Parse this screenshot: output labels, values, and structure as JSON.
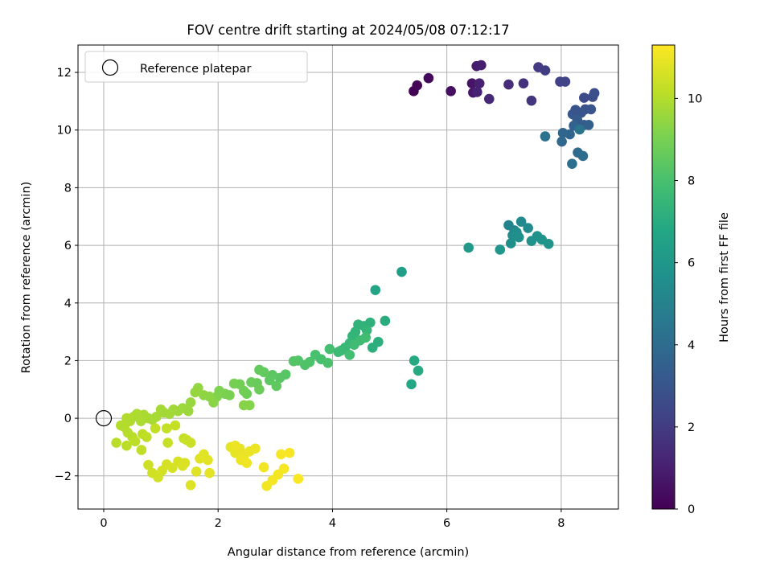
{
  "chart_data": {
    "type": "scatter",
    "title": "FOV centre drift starting at 2024/05/08 07:12:17",
    "xlabel": "Angular distance from reference (arcmin)",
    "ylabel": "Rotation from reference (arcmin)",
    "xlim": [
      -0.45,
      9.0
    ],
    "ylim": [
      -3.15,
      12.95
    ],
    "xticks": [
      0,
      2,
      4,
      6,
      8
    ],
    "yticks": [
      -2,
      0,
      2,
      4,
      6,
      8,
      10,
      12
    ],
    "ytick_labels": [
      "−2",
      "0",
      "2",
      "4",
      "6",
      "8",
      "10",
      "12"
    ],
    "grid": true,
    "legend": {
      "position": "top-left",
      "entries": [
        "Reference platepar"
      ]
    },
    "reference_point": {
      "x": 0,
      "y": 0,
      "label": "Reference platepar"
    },
    "colorbar": {
      "label": "Hours from first FF file",
      "range": [
        0,
        11.3
      ],
      "ticks": [
        0,
        2,
        4,
        6,
        8,
        10
      ],
      "colormap": "viridis"
    },
    "series_note": "points are [angular distance (arcmin), rotation (arcmin), hours from first FF file]",
    "points": [
      [
        5.42,
        11.35,
        0.05
      ],
      [
        5.48,
        11.55,
        0.15
      ],
      [
        5.68,
        11.8,
        0.25
      ],
      [
        6.07,
        11.35,
        0.45
      ],
      [
        6.44,
        11.62,
        0.65
      ],
      [
        6.46,
        11.3,
        0.75
      ],
      [
        6.52,
        12.22,
        0.85
      ],
      [
        6.6,
        12.25,
        0.95
      ],
      [
        6.57,
        11.62,
        1.05
      ],
      [
        6.53,
        11.32,
        1.1
      ],
      [
        6.74,
        11.08,
        1.3
      ],
      [
        7.08,
        11.58,
        1.45
      ],
      [
        7.34,
        11.62,
        1.6
      ],
      [
        7.48,
        11.02,
        1.8
      ],
      [
        7.6,
        12.18,
        1.95
      ],
      [
        7.72,
        12.07,
        2.05
      ],
      [
        7.98,
        11.68,
        2.2
      ],
      [
        8.07,
        11.68,
        2.3
      ],
      [
        8.4,
        11.12,
        2.55
      ],
      [
        8.55,
        11.15,
        2.65
      ],
      [
        8.58,
        11.28,
        2.75
      ],
      [
        8.42,
        10.72,
        2.85
      ],
      [
        8.52,
        10.72,
        2.95
      ],
      [
        8.35,
        10.6,
        3.05
      ],
      [
        8.2,
        10.55,
        3.15
      ],
      [
        8.28,
        10.35,
        3.25
      ],
      [
        8.4,
        10.18,
        3.35
      ],
      [
        8.48,
        10.18,
        3.45
      ],
      [
        8.22,
        10.15,
        3.55
      ],
      [
        8.15,
        9.85,
        3.65
      ],
      [
        8.03,
        9.9,
        3.75
      ],
      [
        8.01,
        9.6,
        3.85
      ],
      [
        8.29,
        9.22,
        3.95
      ],
      [
        8.38,
        9.1,
        4.05
      ],
      [
        8.19,
        8.83,
        4.15
      ],
      [
        7.72,
        9.78,
        4.25
      ],
      [
        8.32,
        10.02,
        4.35
      ],
      [
        8.25,
        10.7,
        3.0
      ],
      [
        7.08,
        6.7,
        5.1
      ],
      [
        7.18,
        6.52,
        5.2
      ],
      [
        7.3,
        6.82,
        5.3
      ],
      [
        7.42,
        6.6,
        5.4
      ],
      [
        7.22,
        6.45,
        5.5
      ],
      [
        7.15,
        6.35,
        5.55
      ],
      [
        7.12,
        6.07,
        5.6
      ],
      [
        7.26,
        6.28,
        5.65
      ],
      [
        7.48,
        6.15,
        5.7
      ],
      [
        7.58,
        6.32,
        5.75
      ],
      [
        7.66,
        6.2,
        5.8
      ],
      [
        7.78,
        6.05,
        5.85
      ],
      [
        6.93,
        5.85,
        5.95
      ],
      [
        6.38,
        5.92,
        6.05
      ],
      [
        5.21,
        5.08,
        6.35
      ],
      [
        4.75,
        4.45,
        6.65
      ],
      [
        5.38,
        1.18,
        6.8
      ],
      [
        5.43,
        2.0,
        6.9
      ],
      [
        5.5,
        1.65,
        6.95
      ],
      [
        4.92,
        3.38,
        7.05
      ],
      [
        4.8,
        2.65,
        7.1
      ],
      [
        4.7,
        2.45,
        7.15
      ],
      [
        4.66,
        3.32,
        7.2
      ],
      [
        4.55,
        3.2,
        7.25
      ],
      [
        4.45,
        3.25,
        7.3
      ],
      [
        4.4,
        3.0,
        7.35
      ],
      [
        4.35,
        2.85,
        7.4
      ],
      [
        4.6,
        3.05,
        7.45
      ],
      [
        4.3,
        2.6,
        7.5
      ],
      [
        4.22,
        2.45,
        7.55
      ],
      [
        4.15,
        2.35,
        7.6
      ],
      [
        4.1,
        2.3,
        7.65
      ],
      [
        4.48,
        2.7,
        7.7
      ],
      [
        4.38,
        2.55,
        7.75
      ],
      [
        4.58,
        2.8,
        7.8
      ],
      [
        4.3,
        2.2,
        7.85
      ],
      [
        3.95,
        2.4,
        7.9
      ],
      [
        3.8,
        2.05,
        7.95
      ],
      [
        3.7,
        2.2,
        8.0
      ],
      [
        3.92,
        1.92,
        8.05
      ],
      [
        3.6,
        1.95,
        8.1
      ],
      [
        3.52,
        1.85,
        8.15
      ],
      [
        3.4,
        2.0,
        8.2
      ],
      [
        3.32,
        1.98,
        8.25
      ],
      [
        3.18,
        1.52,
        8.3
      ],
      [
        3.08,
        1.4,
        8.35
      ],
      [
        2.95,
        1.5,
        8.4
      ],
      [
        2.9,
        1.32,
        8.45
      ],
      [
        3.02,
        1.12,
        8.5
      ],
      [
        2.8,
        1.6,
        8.55
      ],
      [
        2.72,
        1.68,
        8.6
      ],
      [
        2.68,
        1.22,
        8.65
      ],
      [
        2.58,
        1.25,
        8.7
      ],
      [
        2.72,
        1.0,
        8.75
      ],
      [
        2.5,
        0.85,
        8.8
      ],
      [
        2.45,
        0.95,
        8.85
      ],
      [
        2.38,
        1.18,
        8.9
      ],
      [
        2.28,
        1.2,
        8.95
      ],
      [
        2.2,
        0.8,
        9.0
      ],
      [
        2.12,
        0.85,
        9.05
      ],
      [
        2.02,
        0.95,
        9.1
      ],
      [
        1.98,
        0.75,
        9.15
      ],
      [
        2.55,
        0.45,
        9.2
      ],
      [
        2.45,
        0.45,
        9.25
      ],
      [
        1.92,
        0.55,
        9.3
      ],
      [
        1.85,
        0.75,
        9.35
      ],
      [
        1.75,
        0.8,
        9.4
      ],
      [
        1.65,
        1.05,
        9.45
      ],
      [
        1.6,
        0.9,
        9.5
      ],
      [
        1.52,
        0.55,
        9.55
      ],
      [
        1.48,
        0.25,
        9.6
      ],
      [
        1.38,
        0.35,
        9.62
      ],
      [
        1.3,
        0.25,
        9.65
      ],
      [
        1.22,
        0.3,
        9.68
      ],
      [
        1.15,
        0.15,
        9.7
      ],
      [
        1.05,
        0.2,
        9.72
      ],
      [
        1.0,
        0.3,
        9.75
      ],
      [
        0.92,
        0.05,
        9.78
      ],
      [
        0.85,
        -0.05,
        9.8
      ],
      [
        0.78,
        0.0,
        9.82
      ],
      [
        0.7,
        0.12,
        9.85
      ],
      [
        0.65,
        -0.1,
        9.88
      ],
      [
        0.58,
        0.15,
        9.9
      ],
      [
        0.52,
        0.05,
        9.92
      ],
      [
        0.46,
        -0.1,
        9.95
      ],
      [
        0.4,
        0.0,
        9.98
      ],
      [
        0.36,
        -0.3,
        10.0
      ],
      [
        0.3,
        -0.25,
        10.02
      ],
      [
        0.42,
        -0.5,
        10.05
      ],
      [
        0.5,
        -0.65,
        10.08
      ],
      [
        0.22,
        -0.85,
        10.1
      ],
      [
        0.4,
        -0.95,
        10.12
      ],
      [
        0.55,
        -0.8,
        10.15
      ],
      [
        0.68,
        -0.55,
        10.18
      ],
      [
        0.75,
        -0.65,
        10.2
      ],
      [
        0.66,
        -1.1,
        10.22
      ],
      [
        0.9,
        -0.35,
        10.25
      ],
      [
        1.1,
        -0.35,
        10.28
      ],
      [
        1.25,
        -0.25,
        10.3
      ],
      [
        1.4,
        -0.7,
        10.32
      ],
      [
        1.12,
        -0.85,
        10.35
      ],
      [
        1.52,
        -0.85,
        10.38
      ],
      [
        1.45,
        -0.75,
        10.4
      ],
      [
        0.78,
        -1.62,
        10.45
      ],
      [
        0.85,
        -1.9,
        10.48
      ],
      [
        0.95,
        -2.05,
        10.52
      ],
      [
        1.02,
        -1.82,
        10.55
      ],
      [
        1.1,
        -1.6,
        10.58
      ],
      [
        1.2,
        -1.72,
        10.62
      ],
      [
        1.3,
        -1.5,
        10.65
      ],
      [
        1.38,
        -1.65,
        10.68
      ],
      [
        1.42,
        -1.55,
        10.7
      ],
      [
        1.52,
        -2.32,
        10.72
      ],
      [
        1.62,
        -1.85,
        10.75
      ],
      [
        1.68,
        -1.4,
        10.78
      ],
      [
        1.75,
        -1.25,
        10.8
      ],
      [
        1.82,
        -1.45,
        10.82
      ],
      [
        1.85,
        -1.9,
        10.85
      ],
      [
        2.22,
        -1.0,
        10.88
      ],
      [
        2.3,
        -1.2,
        10.9
      ],
      [
        2.38,
        -1.05,
        10.92
      ],
      [
        2.45,
        -1.3,
        10.95
      ],
      [
        2.55,
        -1.15,
        10.97
      ],
      [
        2.65,
        -1.05,
        11.0
      ],
      [
        2.4,
        -1.45,
        11.02
      ],
      [
        2.5,
        -1.55,
        11.05
      ],
      [
        2.8,
        -1.7,
        11.08
      ],
      [
        2.85,
        -2.35,
        11.1
      ],
      [
        2.95,
        -2.15,
        11.12
      ],
      [
        3.05,
        -1.95,
        11.15
      ],
      [
        3.15,
        -1.75,
        11.18
      ],
      [
        3.1,
        -1.25,
        11.2
      ],
      [
        3.25,
        -1.2,
        11.22
      ],
      [
        3.4,
        -2.1,
        11.25
      ],
      [
        2.3,
        -0.95,
        10.99
      ]
    ]
  }
}
